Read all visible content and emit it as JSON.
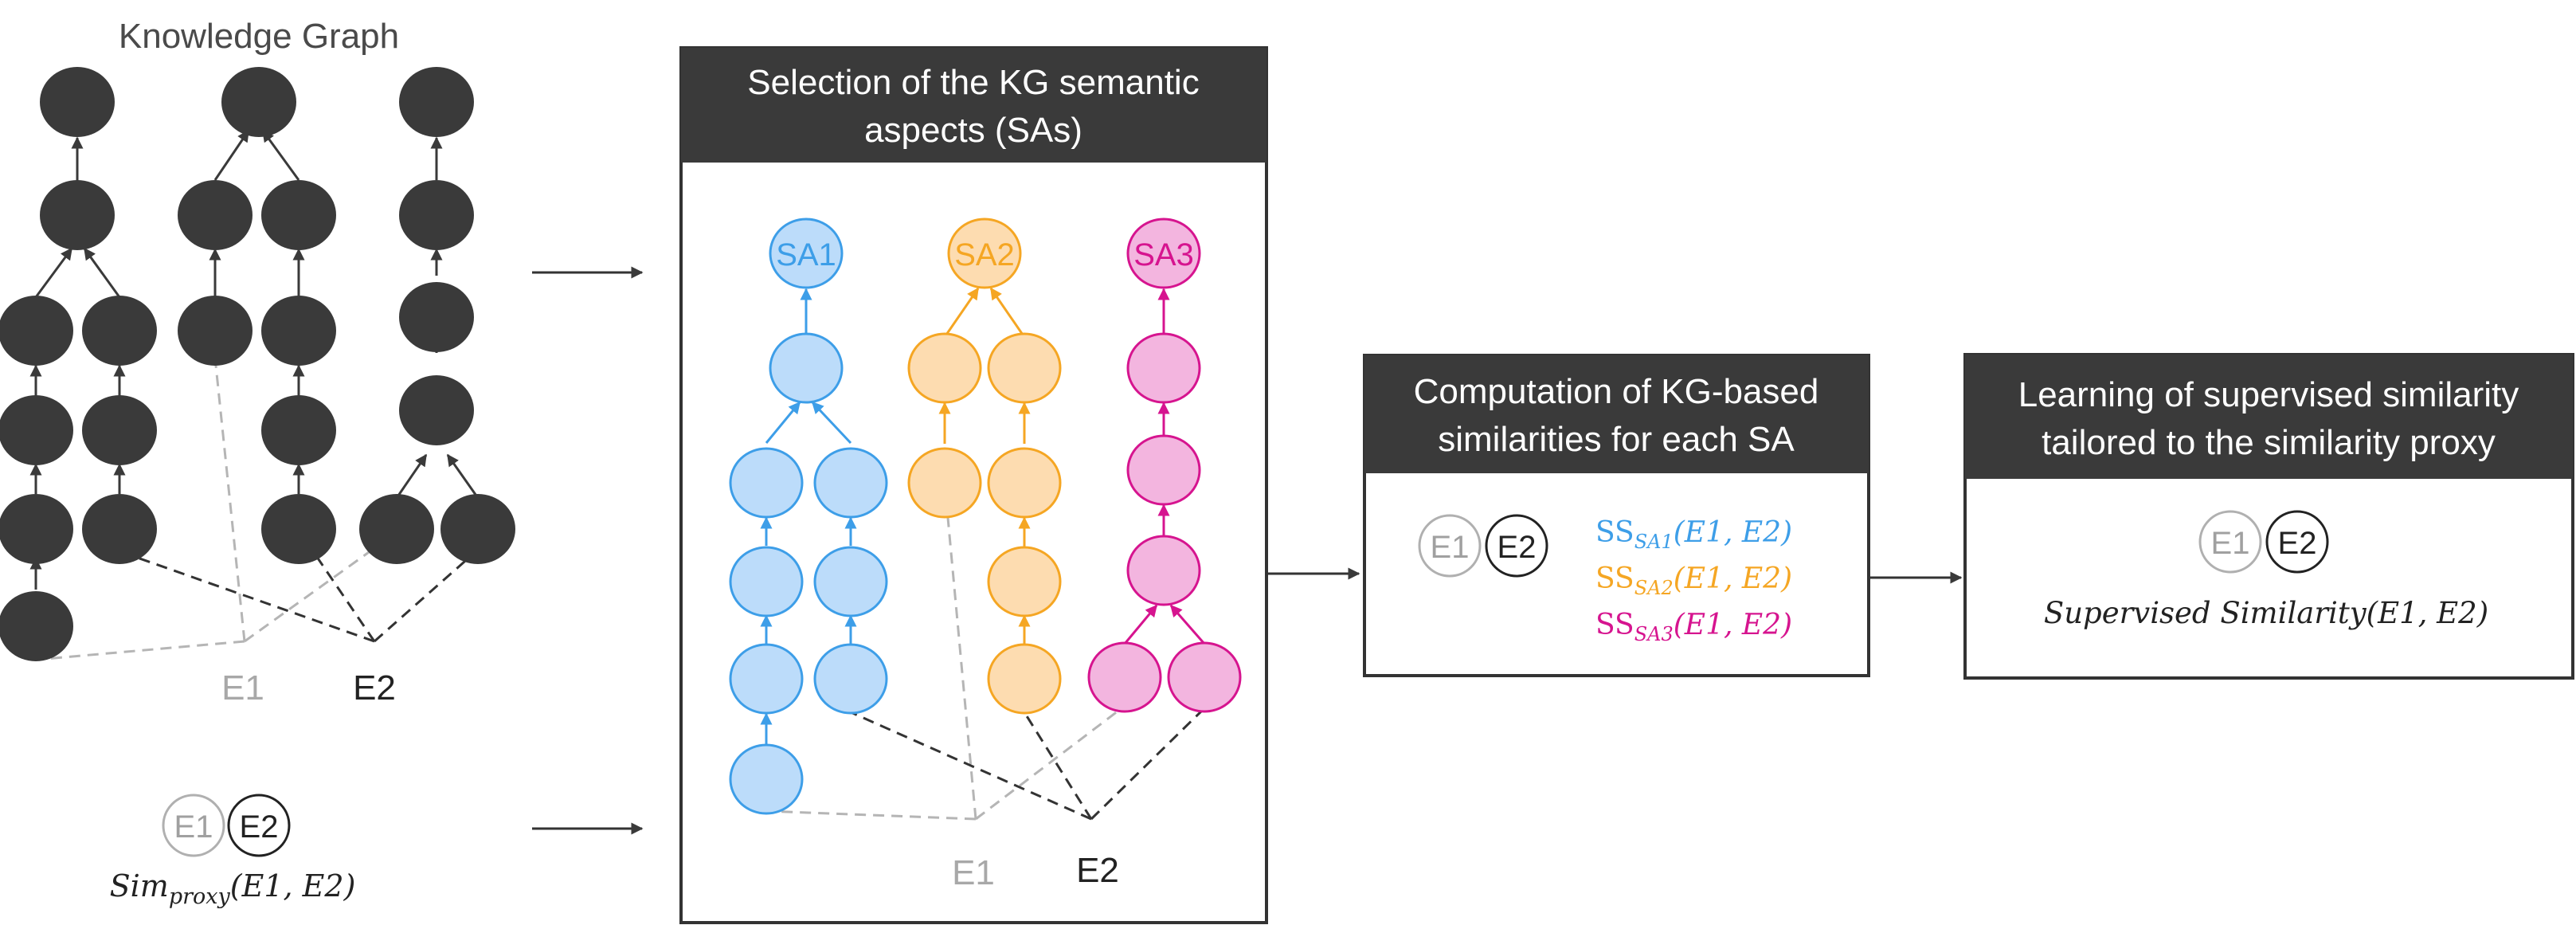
{
  "kg": {
    "title": "Knowledge Graph",
    "e1_label": "E1",
    "e2_label": "E2",
    "proxy_e1": "E1",
    "proxy_e2": "E2",
    "proxy_func": "Sim",
    "proxy_sub": "proxy",
    "proxy_args": "(E1, E2)"
  },
  "selection": {
    "header_line1": "Selection of the KG semantic",
    "header_line2": "aspects (SAs)",
    "sa1": "SA1",
    "sa2": "SA2",
    "sa3": "SA3",
    "e1_label": "E1",
    "e2_label": "E2"
  },
  "computation": {
    "header_line1": "Computation of KG-based",
    "header_line2": "similarities for each SA",
    "e1": "E1",
    "e2": "E2",
    "ss1_main": "SS",
    "ss1_sub": "SA1",
    "ss1_args": "(E1, E2)",
    "ss2_main": "SS",
    "ss2_sub": "SA2",
    "ss2_args": "(E1, E2)",
    "ss3_main": "SS",
    "ss3_sub": "SA3",
    "ss3_args": "(E1, E2)"
  },
  "learning": {
    "header_line1": "Learning of supervised similarity",
    "header_line2": "tailored to the similarity proxy",
    "e1": "E1",
    "e2": "E2",
    "formula": "Supervised Similarity(E1, E2)"
  },
  "colors": {
    "dark": "#3a3a3a",
    "sa1_fill": "#bcdcfa",
    "sa1_stroke": "#3d9ee8",
    "sa2_fill": "#fddcb0",
    "sa2_stroke": "#f5a623",
    "sa3_fill": "#f3b5df",
    "sa3_stroke": "#d6148f",
    "muted": "#a8a8a8"
  }
}
